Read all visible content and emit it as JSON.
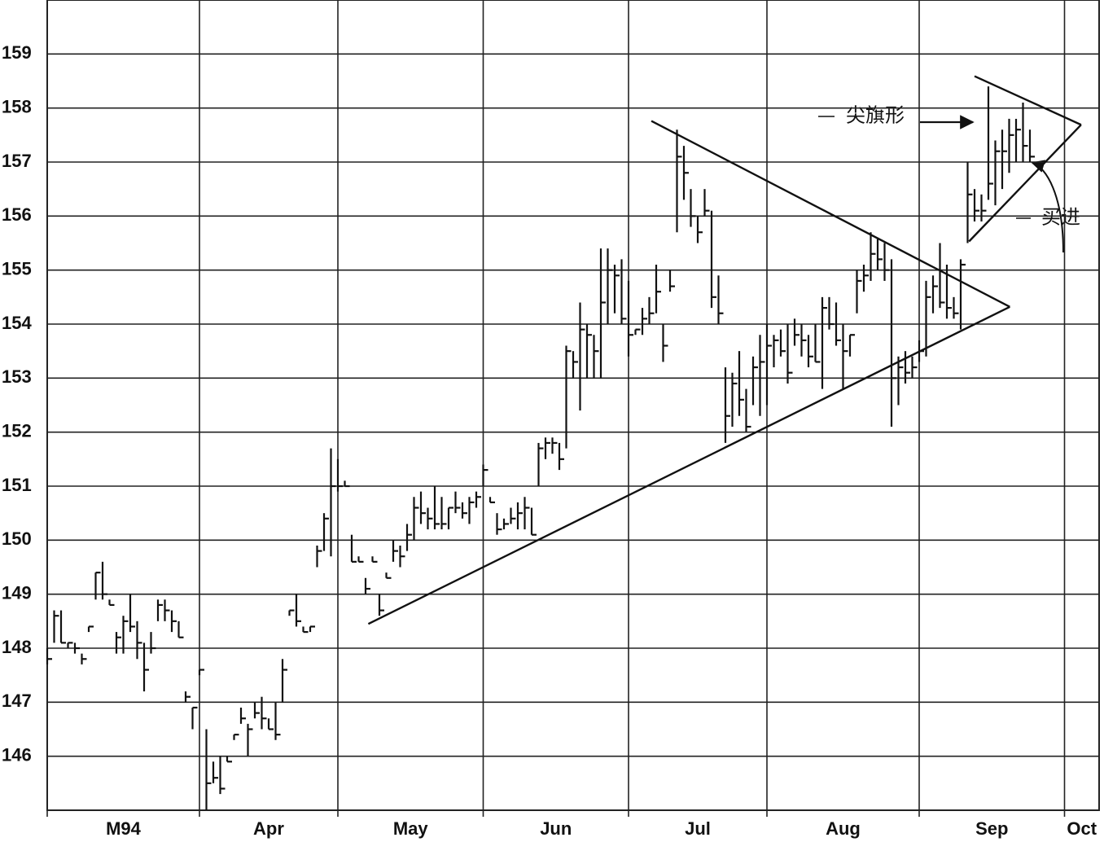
{
  "chart_data": {
    "type": "hlc",
    "x": [
      0,
      1,
      2,
      3,
      4,
      5,
      6,
      7,
      8,
      9,
      10,
      11,
      12,
      13,
      14,
      15,
      16,
      17,
      18,
      19,
      20,
      21,
      22,
      23,
      24,
      25,
      26,
      27,
      28,
      29,
      30,
      31,
      32,
      33,
      34,
      35,
      36,
      37,
      38,
      39,
      40,
      41,
      42,
      43,
      44,
      45,
      46,
      47,
      48,
      49,
      50,
      51,
      52,
      53,
      54,
      55,
      56,
      57,
      58,
      59,
      60,
      61,
      62,
      63,
      64,
      65,
      66,
      67,
      68,
      69,
      70,
      71,
      72,
      73,
      74,
      75,
      76,
      77,
      78,
      79,
      80,
      81,
      82,
      83,
      84,
      85,
      86,
      87,
      88,
      89,
      90,
      91,
      92,
      93,
      94,
      95,
      96,
      97,
      98,
      99,
      100,
      101,
      102,
      103,
      104,
      105,
      106,
      107,
      108,
      109,
      110,
      111,
      112,
      113,
      114,
      115,
      116,
      117,
      118,
      119,
      120,
      121,
      122,
      123,
      124,
      125,
      126,
      127,
      128,
      129,
      130,
      131,
      132,
      133,
      134,
      135,
      136,
      137,
      138,
      139,
      140,
      141,
      142
    ],
    "high": [
      148.0,
      148.7,
      148.7,
      148.1,
      148.1,
      147.9,
      148.4,
      149.4,
      149.6,
      148.9,
      148.3,
      148.6,
      149.0,
      148.5,
      148.1,
      148.3,
      148.9,
      148.9,
      148.7,
      148.5,
      147.2,
      146.9,
      147.6,
      146.5,
      145.9,
      146.0,
      146.0,
      146.4,
      146.9,
      146.6,
      147.0,
      147.1,
      146.7,
      147.0,
      147.8,
      148.7,
      149.0,
      148.4,
      148.4,
      149.9,
      150.5,
      151.7,
      151.5,
      151.1,
      150.1,
      149.7,
      149.3,
      149.7,
      149.0,
      149.4,
      150.0,
      149.9,
      150.3,
      150.8,
      150.9,
      150.6,
      151.0,
      150.8,
      150.6,
      150.9,
      150.7,
      150.8,
      150.9,
      151.4,
      150.8,
      150.5,
      150.4,
      150.6,
      150.7,
      150.8,
      150.6,
      151.8,
      151.9,
      151.9,
      151.8,
      153.6,
      153.5,
      154.4,
      154.0,
      153.8,
      155.4,
      155.4,
      155.1,
      155.2,
      154.8,
      153.9,
      154.3,
      154.5,
      155.1,
      154.0,
      155.0,
      157.6,
      157.3,
      156.5,
      156.0,
      156.5,
      156.1,
      154.9,
      153.2,
      153.1,
      153.5,
      152.8,
      153.4,
      153.8,
      154.0,
      153.8,
      153.9,
      154.0,
      154.1,
      154.0,
      153.8,
      154.0,
      154.5,
      154.5,
      154.4,
      154.0,
      153.8,
      155.0,
      155.1,
      155.7,
      155.6,
      155.5,
      155.2,
      153.4,
      153.5,
      153.4,
      153.7,
      154.8,
      154.9,
      155.5,
      155.1,
      154.5,
      155.2,
      157.0,
      156.5,
      156.4,
      158.4,
      157.4,
      157.6,
      157.8,
      157.8,
      158.1,
      157.6
    ],
    "low": [
      147.7,
      148.1,
      148.1,
      148.0,
      147.9,
      147.7,
      148.3,
      148.9,
      148.9,
      148.8,
      147.9,
      147.9,
      148.3,
      147.8,
      147.2,
      147.9,
      148.5,
      148.5,
      148.3,
      148.2,
      147.0,
      146.5,
      147.5,
      145.0,
      145.5,
      145.3,
      145.9,
      146.3,
      146.6,
      146.0,
      146.7,
      146.5,
      146.5,
      146.3,
      147.0,
      148.6,
      148.4,
      148.3,
      148.3,
      149.5,
      149.8,
      149.7,
      150.9,
      151.0,
      149.6,
      149.6,
      149.0,
      149.6,
      148.6,
      149.3,
      149.6,
      149.5,
      149.8,
      150.0,
      150.3,
      150.2,
      150.2,
      150.2,
      150.2,
      150.5,
      150.4,
      150.3,
      150.6,
      151.0,
      150.7,
      150.1,
      150.2,
      150.3,
      150.2,
      150.2,
      150.1,
      151.0,
      151.5,
      151.6,
      151.3,
      151.7,
      153.0,
      152.4,
      153.0,
      153.0,
      153.0,
      154.0,
      154.2,
      154.0,
      153.4,
      153.8,
      153.8,
      154.0,
      154.2,
      153.3,
      154.6,
      155.7,
      156.3,
      155.8,
      155.5,
      156.0,
      154.3,
      154.0,
      151.8,
      152.1,
      152.3,
      152.0,
      152.5,
      152.3,
      152.5,
      153.2,
      153.4,
      152.9,
      153.6,
      153.4,
      153.2,
      153.3,
      152.8,
      153.9,
      153.6,
      152.8,
      153.4,
      154.2,
      154.6,
      154.8,
      155.0,
      154.8,
      152.1,
      152.5,
      152.9,
      153.0,
      153.3,
      153.4,
      154.2,
      154.3,
      154.1,
      154.1,
      153.9,
      155.5,
      155.9,
      155.9,
      156.3,
      156.2,
      156.5,
      156.8,
      157.0,
      157.0,
      157.0
    ],
    "close": [
      147.8,
      148.6,
      148.1,
      148.1,
      148.0,
      147.8,
      148.4,
      149.4,
      149.0,
      148.8,
      148.2,
      148.5,
      148.4,
      148.1,
      147.6,
      148.0,
      148.8,
      148.7,
      148.5,
      148.2,
      147.1,
      146.9,
      147.6,
      145.5,
      145.6,
      145.4,
      145.9,
      146.4,
      146.7,
      146.5,
      146.8,
      146.7,
      146.5,
      146.4,
      147.6,
      148.7,
      148.5,
      148.3,
      148.4,
      149.8,
      150.4,
      151.0,
      151.0,
      151.0,
      149.6,
      149.6,
      149.1,
      149.6,
      148.7,
      149.3,
      149.8,
      149.7,
      150.1,
      150.6,
      150.5,
      150.4,
      150.3,
      150.3,
      150.6,
      150.6,
      150.5,
      150.7,
      150.8,
      151.3,
      150.7,
      150.2,
      150.3,
      150.4,
      150.5,
      150.6,
      150.1,
      151.7,
      151.8,
      151.8,
      151.5,
      153.5,
      153.3,
      153.9,
      153.8,
      153.5,
      154.4,
      155.0,
      154.9,
      154.1,
      153.8,
      153.9,
      154.1,
      154.2,
      154.6,
      153.6,
      154.7,
      157.1,
      156.8,
      156.0,
      155.7,
      156.1,
      154.5,
      154.2,
      152.3,
      152.9,
      152.6,
      152.1,
      153.2,
      153.3,
      153.6,
      153.7,
      153.5,
      153.1,
      153.8,
      153.7,
      153.4,
      153.3,
      154.3,
      154.0,
      153.7,
      153.5,
      153.8,
      154.8,
      154.9,
      155.3,
      155.2,
      155.0,
      153.0,
      153.2,
      153.1,
      153.2,
      153.5,
      154.5,
      154.7,
      154.4,
      154.3,
      154.2,
      155.1,
      156.4,
      156.1,
      156.1,
      156.6,
      157.2,
      157.2,
      157.5,
      157.6,
      157.3,
      157.1
    ],
    "color": "#111111",
    "xlim": [
      0,
      152
    ],
    "xticks": [
      {
        "value": 0,
        "label": "M94"
      },
      {
        "value": 22,
        "label": "Apr"
      },
      {
        "value": 42,
        "label": "May"
      },
      {
        "value": 63,
        "label": "Jun"
      },
      {
        "value": 84,
        "label": "Jul"
      },
      {
        "value": 104,
        "label": "Aug"
      },
      {
        "value": 126,
        "label": "Sep"
      },
      {
        "value": 147,
        "label": "Oct"
      }
    ],
    "ylim": [
      145,
      160
    ],
    "yticks": [
      146,
      147,
      148,
      149,
      150,
      151,
      152,
      153,
      154,
      155,
      156,
      157,
      158,
      159
    ],
    "grid": true,
    "trendlines": [
      {
        "x": [
          46.4,
          139.1
        ],
        "y": [
          148.45,
          154.32
        ]
      },
      {
        "x": [
          87.3,
          139.1
        ],
        "y": [
          157.76,
          154.32
        ]
      },
      {
        "x": [
          133.2,
          149.4
        ],
        "y": [
          155.53,
          157.69
        ]
      },
      {
        "x": [
          134.0,
          149.4
        ],
        "y": [
          158.59,
          157.69
        ]
      }
    ],
    "annotations": [
      "尖旗形",
      "买进"
    ]
  }
}
